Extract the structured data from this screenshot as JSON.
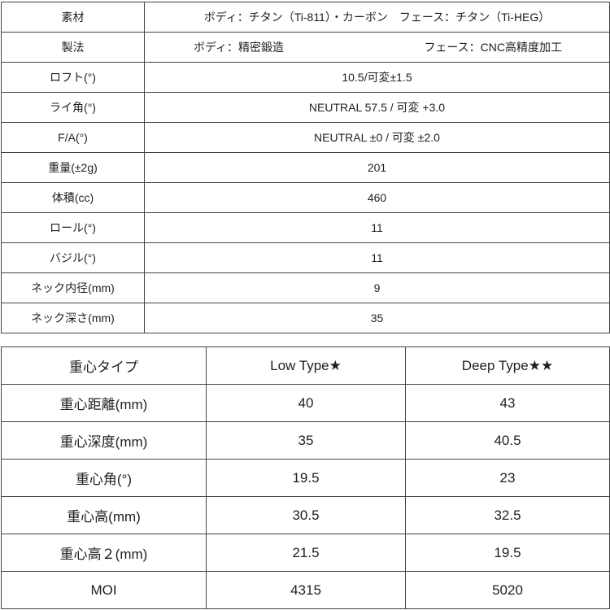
{
  "colors": {
    "border": "#444444",
    "text": "#1f1f1f",
    "background": "#ffffff"
  },
  "spec_table": {
    "rows": [
      {
        "label": "素材",
        "value": "ボディ：チタン（Ti-811）・カーボン　フェース：チタン（Ti-HEG）"
      },
      {
        "label": "製法",
        "value_body": "ボディ：精密鍛造",
        "value_face": "フェース：CNC高精度加工"
      },
      {
        "label": "ロフト(°)",
        "value": "10.5/可変±1.5"
      },
      {
        "label": "ライ角(°)",
        "value": "NEUTRAL 57.5 / 可変 +3.0"
      },
      {
        "label": "F/A(°)",
        "value": "NEUTRAL ±0 / 可変 ±2.0"
      },
      {
        "label": "重量(±2g)",
        "value": "201"
      },
      {
        "label": "体積(cc)",
        "value": "460"
      },
      {
        "label": "ロール(°)",
        "value": "11"
      },
      {
        "label": "バジル(°)",
        "value": "11"
      },
      {
        "label": "ネック内径(mm)",
        "value": "9"
      },
      {
        "label": "ネック深さ(mm)",
        "value": "35"
      }
    ]
  },
  "cg_table": {
    "header": {
      "label": "重心タイプ",
      "low": "Low Type★",
      "deep": "Deep Type★★"
    },
    "rows": [
      {
        "label": "重心距離(mm)",
        "low": "40",
        "deep": "43"
      },
      {
        "label": "重心深度(mm)",
        "low": "35",
        "deep": "40.5"
      },
      {
        "label": "重心角(°)",
        "low": "19.5",
        "deep": "23"
      },
      {
        "label": "重心高(mm)",
        "low": "30.5",
        "deep": "32.5"
      },
      {
        "label": "重心高２(mm)",
        "low": "21.5",
        "deep": "19.5"
      },
      {
        "label": "MOI",
        "low": "4315",
        "deep": "5020"
      }
    ]
  }
}
